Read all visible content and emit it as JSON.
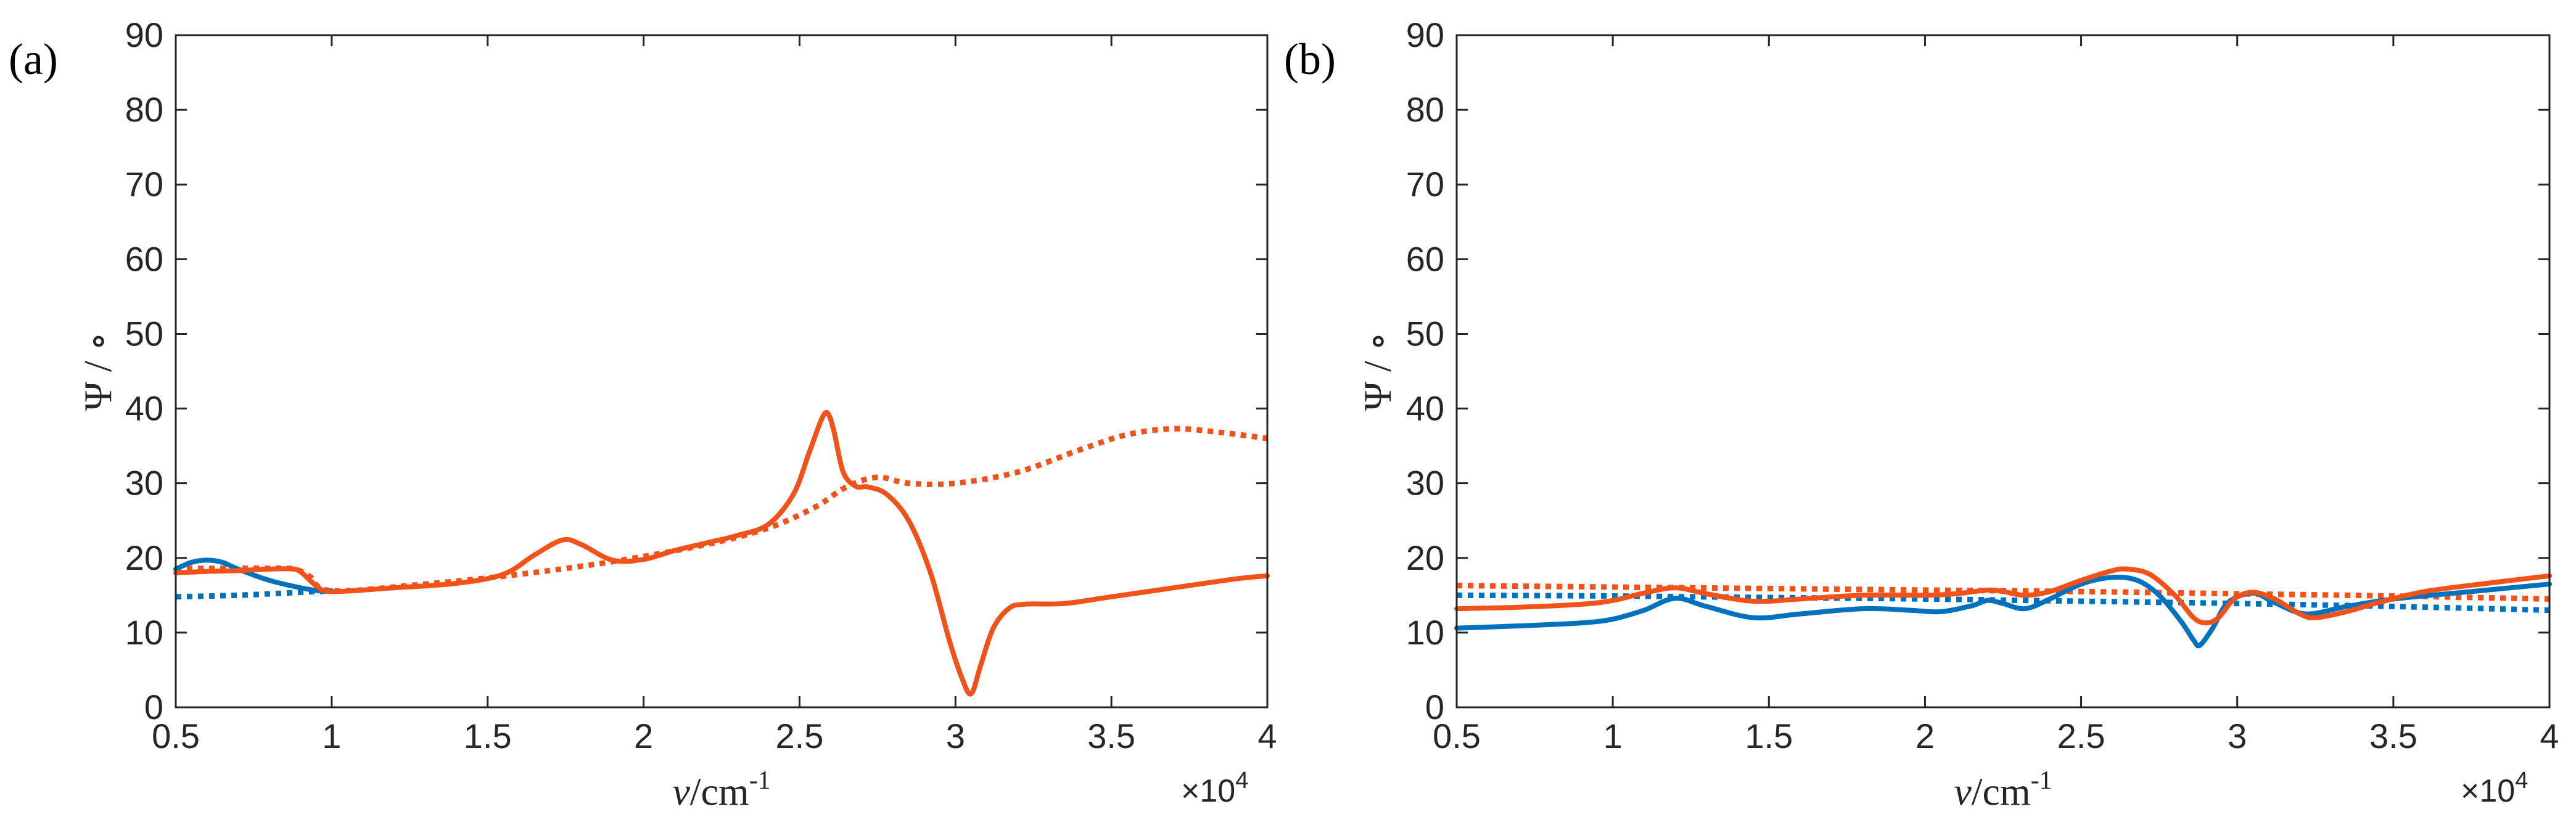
{
  "colors": {
    "blue": "#0072BD",
    "orange": "#F0521A",
    "axis": "#262626",
    "frame": "#B0B0B0"
  },
  "chart_data": [
    {
      "type": "line",
      "panel_label": "(a)",
      "xlabel_symbol": "ν",
      "xlabel_unit": "/cm",
      "xlabel_sup": "-1",
      "ylabel": "Ψ / ∘",
      "xlim": [
        0.5,
        4
      ],
      "ylim": [
        0,
        90
      ],
      "x_ticks": [
        0.5,
        1,
        1.5,
        2,
        2.5,
        3,
        3.5,
        4
      ],
      "x_tick_labels": [
        "0.5",
        "1",
        "1.5",
        "2",
        "2.5",
        "3",
        "3.5",
        "4"
      ],
      "y_ticks": [
        0,
        10,
        20,
        30,
        40,
        50,
        60,
        70,
        80,
        90
      ],
      "y_tick_labels": [
        "0",
        "10",
        "20",
        "30",
        "40",
        "50",
        "60",
        "70",
        "80",
        "90"
      ],
      "x_multiplier_base": "×10",
      "x_multiplier_exp": "4",
      "series": [
        {
          "name": "blue solid",
          "color": "blue",
          "style": "solid",
          "x": [
            0.5,
            0.55,
            0.6,
            0.65,
            0.7,
            0.8,
            0.9,
            0.96,
            1.0
          ],
          "y": [
            18.5,
            19.4,
            19.7,
            19.4,
            18.5,
            17.0,
            16.0,
            15.6,
            15.6
          ]
        },
        {
          "name": "blue dotted",
          "color": "blue",
          "style": "dotted",
          "x": [
            0.5,
            0.7,
            0.9,
            1.0
          ],
          "y": [
            14.8,
            15.0,
            15.4,
            15.6
          ]
        },
        {
          "name": "orange solid",
          "color": "orange",
          "style": "solid",
          "x": [
            0.5,
            0.6,
            0.7,
            0.8,
            0.88,
            0.91,
            0.95,
            1.0,
            1.2,
            1.4,
            1.55,
            1.65,
            1.74,
            1.8,
            1.9,
            2.0,
            2.1,
            2.2,
            2.3,
            2.4,
            2.48,
            2.53,
            2.57,
            2.59,
            2.61,
            2.64,
            2.68,
            2.72,
            2.78,
            2.85,
            2.92,
            2.98,
            3.02,
            3.05,
            3.08,
            3.12,
            3.17,
            3.22,
            3.35,
            3.5,
            3.7,
            3.9,
            4.0
          ],
          "y": [
            18.0,
            18.2,
            18.3,
            18.5,
            18.5,
            17.8,
            16.3,
            15.5,
            16.0,
            16.6,
            17.8,
            20.4,
            22.4,
            21.8,
            19.7,
            19.8,
            21.0,
            22.0,
            23.0,
            24.5,
            28.5,
            34.0,
            38.5,
            39.4,
            37.0,
            31.5,
            29.6,
            29.5,
            28.5,
            25.0,
            18.0,
            9.0,
            4.0,
            1.8,
            5.5,
            10.5,
            13.2,
            13.8,
            13.9,
            14.8,
            16.0,
            17.2,
            17.6
          ]
        },
        {
          "name": "orange dotted",
          "color": "orange",
          "style": "dotted",
          "x": [
            0.5,
            0.6,
            0.7,
            0.8,
            0.88,
            0.93,
            1.0,
            1.3,
            1.6,
            1.9,
            2.2,
            2.4,
            2.55,
            2.65,
            2.75,
            2.85,
            3.0,
            3.2,
            3.4,
            3.55,
            3.7,
            3.85,
            4.0
          ],
          "y": [
            18.6,
            18.6,
            18.6,
            18.6,
            18.5,
            17.5,
            15.6,
            16.5,
            17.8,
            19.5,
            21.8,
            24.0,
            26.8,
            29.5,
            30.8,
            30.0,
            30.0,
            31.5,
            34.5,
            36.5,
            37.3,
            36.8,
            36.0
          ]
        }
      ]
    },
    {
      "type": "line",
      "panel_label": "(b)",
      "xlabel_symbol": "ν",
      "xlabel_unit": "/cm",
      "xlabel_sup": "-1",
      "ylabel": "Ψ / ∘",
      "xlim": [
        0.5,
        4
      ],
      "ylim": [
        0,
        90
      ],
      "x_ticks": [
        0.5,
        1,
        1.5,
        2,
        2.5,
        3,
        3.5,
        4
      ],
      "x_tick_labels": [
        "0.5",
        "1",
        "1.5",
        "2",
        "2.5",
        "3",
        "3.5",
        "4"
      ],
      "y_ticks": [
        0,
        10,
        20,
        30,
        40,
        50,
        60,
        70,
        80,
        90
      ],
      "y_tick_labels": [
        "0",
        "10",
        "20",
        "30",
        "40",
        "50",
        "60",
        "70",
        "80",
        "90"
      ],
      "x_multiplier_base": "×10",
      "x_multiplier_exp": "4",
      "series": [
        {
          "name": "blue solid",
          "color": "blue",
          "style": "solid",
          "x": [
            0.5,
            0.7,
            0.9,
            1.0,
            1.1,
            1.2,
            1.3,
            1.45,
            1.6,
            1.8,
            1.95,
            2.05,
            2.15,
            2.2,
            2.25,
            2.32,
            2.4,
            2.5,
            2.6,
            2.68,
            2.75,
            2.82,
            2.86,
            2.88,
            2.92,
            2.97,
            3.05,
            3.12,
            3.22,
            3.35,
            3.5,
            3.7,
            4.0
          ],
          "y": [
            10.6,
            10.9,
            11.3,
            11.8,
            13.0,
            14.6,
            13.5,
            12.0,
            12.5,
            13.2,
            13.0,
            12.8,
            13.6,
            14.3,
            13.9,
            13.2,
            14.5,
            16.5,
            17.4,
            17.0,
            15.0,
            11.5,
            9.0,
            8.3,
            10.5,
            14.0,
            15.3,
            14.0,
            12.5,
            13.5,
            14.5,
            15.3,
            16.5
          ]
        },
        {
          "name": "blue dotted",
          "color": "blue",
          "style": "dotted",
          "x": [
            0.5,
            1.0,
            1.5,
            2.0,
            2.5,
            3.0,
            3.5,
            4.0
          ],
          "y": [
            15.0,
            14.9,
            14.7,
            14.5,
            14.2,
            13.9,
            13.5,
            13.0
          ]
        },
        {
          "name": "orange solid",
          "color": "orange",
          "style": "solid",
          "x": [
            0.5,
            0.7,
            0.9,
            1.0,
            1.1,
            1.2,
            1.3,
            1.45,
            1.6,
            1.8,
            2.0,
            2.1,
            2.2,
            2.25,
            2.32,
            2.4,
            2.5,
            2.6,
            2.65,
            2.72,
            2.8,
            2.86,
            2.9,
            2.94,
            2.99,
            3.05,
            3.12,
            3.2,
            3.25,
            3.35,
            3.45,
            3.6,
            3.8,
            4.0
          ],
          "y": [
            13.2,
            13.4,
            13.8,
            14.3,
            15.3,
            16.0,
            15.2,
            14.2,
            14.5,
            15.0,
            15.0,
            15.2,
            15.7,
            15.5,
            15.0,
            15.5,
            17.0,
            18.3,
            18.5,
            17.8,
            15.0,
            12.0,
            11.3,
            12.0,
            14.5,
            15.4,
            14.5,
            12.5,
            12.0,
            12.8,
            14.0,
            15.5,
            16.6,
            17.6
          ]
        },
        {
          "name": "orange dotted",
          "color": "orange",
          "style": "dotted",
          "x": [
            0.5,
            1.0,
            1.5,
            2.0,
            2.5,
            3.0,
            3.5,
            4.0
          ],
          "y": [
            16.3,
            16.1,
            15.9,
            15.7,
            15.5,
            15.2,
            14.9,
            14.5
          ]
        }
      ]
    }
  ]
}
